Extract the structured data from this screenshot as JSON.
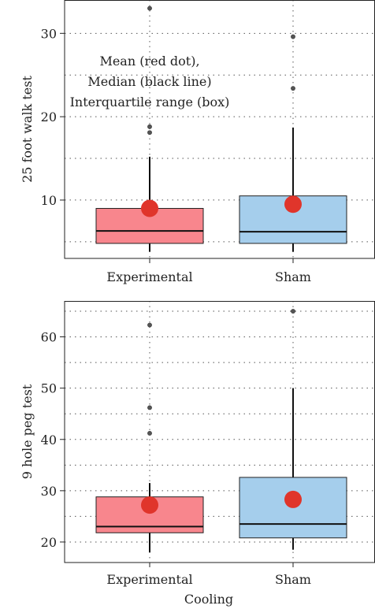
{
  "chart_data": [
    {
      "type": "box",
      "ylabel": "25 foot walk test",
      "categories": [
        "Experimental",
        "Sham"
      ],
      "ylim": [
        3,
        34
      ],
      "yticks": [
        10,
        20,
        30
      ],
      "grid": true,
      "annotation": [
        "Mean (red dot),",
        "Median (black line)",
        "Interquartile range (box)"
      ],
      "boxes": [
        {
          "category": "Experimental",
          "q1": 4.8,
          "median": 6.3,
          "q3": 9.0,
          "whisker_low": 3.8,
          "whisker_high": 15.2,
          "mean": 9.0,
          "outliers": [
            18.1,
            18.8,
            33.0
          ],
          "color": "#F8868D"
        },
        {
          "category": "Sham",
          "q1": 4.8,
          "median": 6.2,
          "q3": 10.5,
          "whisker_low": 3.8,
          "whisker_high": 18.7,
          "mean": 9.5,
          "outliers": [
            23.4,
            29.6
          ],
          "color": "#A5CEEC"
        }
      ]
    },
    {
      "type": "box",
      "ylabel": "9 hole peg test",
      "xlabel": "Cooling",
      "categories": [
        "Experimental",
        "Sham"
      ],
      "ylim": [
        16,
        67
      ],
      "yticks": [
        20,
        30,
        40,
        50,
        60
      ],
      "grid": true,
      "boxes": [
        {
          "category": "Experimental",
          "q1": 21.8,
          "median": 23.0,
          "q3": 28.8,
          "whisker_low": 18.0,
          "whisker_high": 31.5,
          "mean": 27.2,
          "outliers": [
            41.2,
            46.2,
            62.3
          ],
          "color": "#F8868D"
        },
        {
          "category": "Sham",
          "q1": 20.8,
          "median": 23.5,
          "q3": 32.6,
          "whisker_low": 18.5,
          "whisker_high": 50.0,
          "mean": 28.3,
          "outliers": [
            65.0
          ],
          "color": "#A5CEEC"
        }
      ]
    }
  ]
}
